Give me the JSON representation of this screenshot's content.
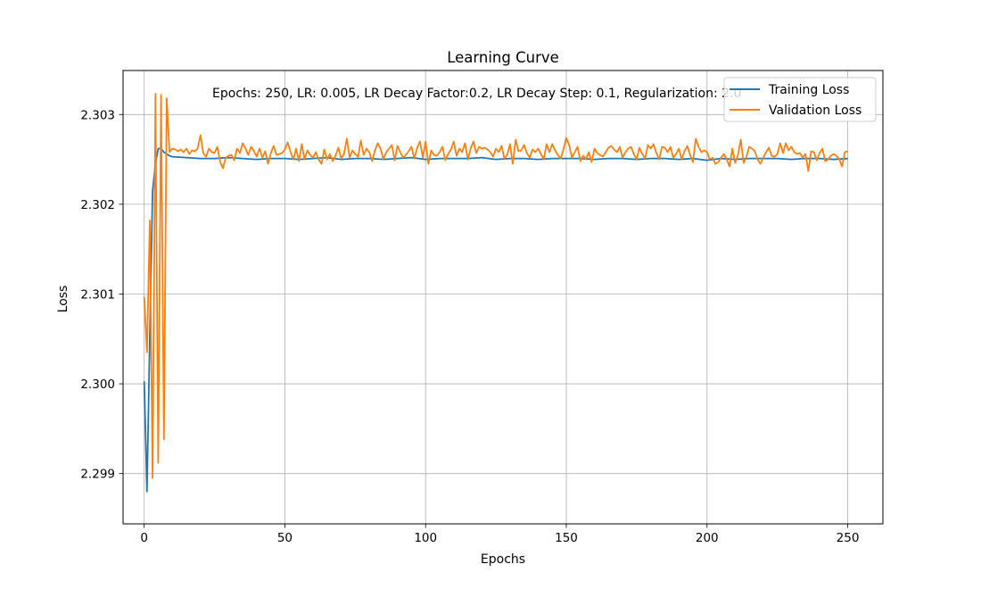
{
  "chart_data": {
    "type": "line",
    "title": "Learning Curve",
    "xlabel": "Epochs",
    "ylabel": "Loss",
    "xlim": [
      -7.5,
      262.5
    ],
    "ylim": [
      2.29844,
      2.30349
    ],
    "xticks": [
      0,
      50,
      100,
      150,
      200,
      250
    ],
    "yticks": [
      2.299,
      2.3,
      2.301,
      2.302,
      2.303
    ],
    "ytick_labels": [
      "2.299",
      "2.300",
      "2.301",
      "2.302",
      "2.303"
    ],
    "grid": true,
    "legend_position": "top-right",
    "annotation": "Epochs: 250, LR: 0.005, LR Decay Factor:0.2, LR Decay Step: 0.1, Regularization: 2.0",
    "series": [
      {
        "name": "Training Loss",
        "color": "#1f77b4",
        "x": [
          0,
          1,
          2,
          3,
          4,
          5,
          6,
          7,
          8,
          9,
          10,
          15,
          20,
          25,
          30,
          35,
          40,
          45,
          50,
          55,
          60,
          65,
          70,
          75,
          80,
          85,
          90,
          95,
          100,
          105,
          110,
          115,
          120,
          125,
          130,
          135,
          140,
          145,
          150,
          155,
          160,
          165,
          170,
          175,
          180,
          185,
          190,
          195,
          200,
          205,
          210,
          215,
          220,
          225,
          230,
          235,
          240,
          245,
          250
        ],
        "values": [
          2.30003,
          2.2988,
          2.30055,
          2.30215,
          2.30245,
          2.30262,
          2.30262,
          2.30258,
          2.30256,
          2.30254,
          2.30253,
          2.30252,
          2.30251,
          2.30251,
          2.30252,
          2.30251,
          2.3025,
          2.30251,
          2.30251,
          2.3025,
          2.30251,
          2.30252,
          2.3025,
          2.30251,
          2.30251,
          2.3025,
          2.30251,
          2.30252,
          2.3025,
          2.30251,
          2.30251,
          2.30251,
          2.30252,
          2.3025,
          2.30251,
          2.30251,
          2.3025,
          2.30251,
          2.30251,
          2.30251,
          2.3025,
          2.30251,
          2.30251,
          2.3025,
          2.30251,
          2.30251,
          2.3025,
          2.30251,
          2.30249,
          2.30251,
          2.3025,
          2.30251,
          2.30251,
          2.30251,
          2.3025,
          2.30251,
          2.30251,
          2.3025,
          2.30251
        ]
      },
      {
        "name": "Validation Loss",
        "color": "#ff7f0e",
        "x": [
          0,
          1,
          2,
          3,
          4,
          5,
          6,
          7,
          8,
          9,
          10,
          11,
          12,
          13,
          14,
          15,
          16,
          17,
          18,
          19,
          20,
          21,
          22,
          23,
          24,
          25,
          26,
          27,
          28,
          29,
          30,
          31,
          32,
          33,
          34,
          35,
          36,
          37,
          38,
          39,
          40,
          41,
          42,
          43,
          44,
          45,
          46,
          47,
          48,
          49,
          50,
          51,
          52,
          53,
          54,
          55,
          56,
          57,
          58,
          59,
          60,
          61,
          62,
          63,
          64,
          65,
          66,
          67,
          68,
          69,
          70,
          71,
          72,
          73,
          74,
          75,
          76,
          77,
          78,
          79,
          80,
          81,
          82,
          83,
          84,
          85,
          86,
          87,
          88,
          89,
          90,
          91,
          92,
          93,
          94,
          95,
          96,
          97,
          98,
          99,
          100,
          101,
          102,
          103,
          104,
          105,
          106,
          107,
          108,
          109,
          110,
          111,
          112,
          113,
          114,
          115,
          116,
          117,
          118,
          119,
          120,
          121,
          122,
          123,
          124,
          125,
          126,
          127,
          128,
          129,
          130,
          131,
          132,
          133,
          134,
          135,
          136,
          137,
          138,
          139,
          140,
          141,
          142,
          143,
          144,
          145,
          146,
          147,
          148,
          149,
          150,
          151,
          152,
          153,
          154,
          155,
          156,
          157,
          158,
          159,
          160,
          161,
          162,
          163,
          164,
          165,
          166,
          167,
          168,
          169,
          170,
          171,
          172,
          173,
          174,
          175,
          176,
          177,
          178,
          179,
          180,
          181,
          182,
          183,
          184,
          185,
          186,
          187,
          188,
          189,
          190,
          191,
          192,
          193,
          194,
          195,
          196,
          197,
          198,
          199,
          200,
          201,
          202,
          203,
          204,
          205,
          206,
          207,
          208,
          209,
          210,
          211,
          212,
          213,
          214,
          215,
          216,
          217,
          218,
          219,
          220,
          221,
          222,
          223,
          224,
          225,
          226,
          227,
          228,
          229,
          230,
          231,
          232,
          233,
          234,
          235,
          236,
          237,
          238,
          239,
          240,
          241,
          242,
          243,
          244,
          245,
          246,
          247,
          248,
          249,
          250
        ],
        "values": [
          2.30097,
          2.30035,
          2.30182,
          2.29895,
          2.30323,
          2.29912,
          2.30322,
          2.29938,
          2.30318,
          2.30258,
          2.30262,
          2.30261,
          2.30259,
          2.30261,
          2.30258,
          2.30262,
          2.30256,
          2.3026,
          2.30259,
          2.30262,
          2.30277,
          2.30257,
          2.30253,
          2.30262,
          2.30258,
          2.30257,
          2.30264,
          2.30247,
          2.3024,
          2.30252,
          2.30254,
          2.30255,
          2.30249,
          2.30262,
          2.30257,
          2.30268,
          2.30262,
          2.30255,
          2.30264,
          2.30259,
          2.30253,
          2.30262,
          2.30252,
          2.30259,
          2.30245,
          2.30257,
          2.30265,
          2.30255,
          2.30256,
          2.30257,
          2.30261,
          2.30269,
          2.30258,
          2.3025,
          2.30262,
          2.30248,
          2.30267,
          2.3025,
          2.3026,
          2.30255,
          2.30252,
          2.30258,
          2.3025,
          2.30245,
          2.30261,
          2.3025,
          2.30256,
          2.30248,
          2.30254,
          2.30263,
          2.30251,
          2.30256,
          2.30273,
          2.30252,
          2.3026,
          2.30256,
          2.30253,
          2.30271,
          2.30255,
          2.30262,
          2.30258,
          2.30248,
          2.3026,
          2.30268,
          2.30262,
          2.3025,
          2.30258,
          2.30262,
          2.30266,
          2.30249,
          2.30265,
          2.30258,
          2.30252,
          2.30255,
          2.30259,
          2.30264,
          2.30251,
          2.30263,
          2.3027,
          2.30252,
          2.3027,
          2.30245,
          2.3026,
          2.30255,
          2.30254,
          2.30258,
          2.30264,
          2.30249,
          2.30256,
          2.30261,
          2.3027,
          2.30254,
          2.30262,
          2.30258,
          2.30268,
          2.3025,
          2.30262,
          2.3027,
          2.30257,
          2.30264,
          2.30262,
          2.30263,
          2.30261,
          2.30258,
          2.30253,
          2.30262,
          2.30258,
          2.30265,
          2.30251,
          2.30255,
          2.30267,
          2.30245,
          2.30272,
          2.30259,
          2.3026,
          2.30266,
          2.30257,
          2.30252,
          2.30261,
          2.30258,
          2.30262,
          2.30256,
          2.3025,
          2.30267,
          2.30258,
          2.30267,
          2.3026,
          2.30255,
          2.30251,
          2.30261,
          2.30274,
          2.30266,
          2.30252,
          2.30258,
          2.30264,
          2.30248,
          2.30254,
          2.3025,
          2.30258,
          2.30247,
          2.30262,
          2.30257,
          2.30255,
          2.30253,
          2.30258,
          2.30263,
          2.30265,
          2.30261,
          2.30258,
          2.30264,
          2.30252,
          2.30258,
          2.30262,
          2.30264,
          2.30256,
          2.3025,
          2.30263,
          2.30256,
          2.30251,
          2.30266,
          2.30262,
          2.30267,
          2.30257,
          2.3025,
          2.30264,
          2.30263,
          2.30258,
          2.30264,
          2.30252,
          2.30256,
          2.30262,
          2.3025,
          2.30259,
          2.30265,
          2.30255,
          2.30247,
          2.30273,
          2.30264,
          2.30258,
          2.3026,
          2.30258,
          2.3025,
          2.30252,
          2.30245,
          2.30247,
          2.30252,
          2.30256,
          2.3025,
          2.30242,
          2.30262,
          2.30246,
          2.30255,
          2.30272,
          2.30246,
          2.30253,
          2.30264,
          2.30262,
          2.30259,
          2.3025,
          2.30245,
          2.30252,
          2.30258,
          2.30263,
          2.30254,
          2.30253,
          2.30256,
          2.30268,
          2.30257,
          2.30268,
          2.3026,
          2.30264,
          2.30258,
          2.30256,
          2.30257,
          2.30252,
          2.30256,
          2.30237,
          2.30259,
          2.30258,
          2.30249,
          2.30257,
          2.30262,
          2.30248,
          2.3025,
          2.30254,
          2.30256,
          2.30254,
          2.3025,
          2.30242,
          2.30258,
          2.30259
        ]
      }
    ]
  }
}
